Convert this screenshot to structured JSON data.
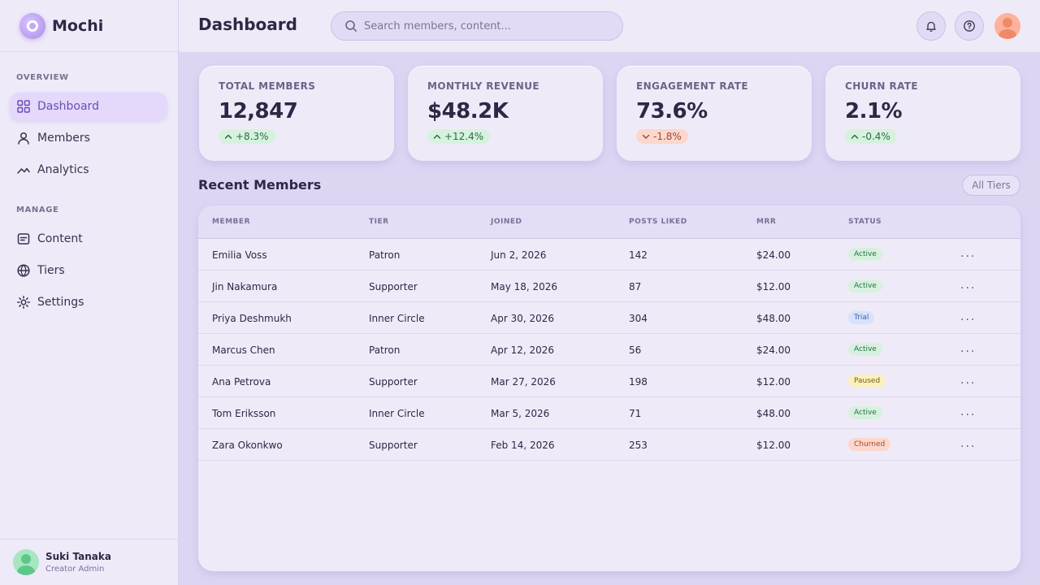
{
  "app": {
    "name": "Mochi"
  },
  "sidebar": {
    "sections": [
      {
        "label": "OVERVIEW"
      },
      {
        "label": "MANAGE"
      }
    ],
    "items": [
      {
        "label": "Dashboard",
        "icon": "grid-icon"
      },
      {
        "label": "Members",
        "icon": "user-icon"
      },
      {
        "label": "Analytics",
        "icon": "analytics-icon"
      },
      {
        "label": "Content",
        "icon": "content-icon"
      },
      {
        "label": "Tiers",
        "icon": "globe-icon"
      },
      {
        "label": "Settings",
        "icon": "gear-icon"
      }
    ],
    "user": {
      "name": "Suki Tanaka",
      "role": "Creator Admin"
    }
  },
  "header": {
    "title": "Dashboard",
    "search_placeholder": "Search members, content..."
  },
  "stats": [
    {
      "label": "TOTAL MEMBERS",
      "value": "12,847",
      "delta": "+8.3%",
      "direction": "up"
    },
    {
      "label": "MONTHLY REVENUE",
      "value": "$48.2K",
      "delta": "+12.4%",
      "direction": "up"
    },
    {
      "label": "ENGAGEMENT RATE",
      "value": "73.6%",
      "delta": "-1.8%",
      "direction": "down"
    },
    {
      "label": "CHURN RATE",
      "value": "2.1%",
      "delta": "-0.4%",
      "direction": "up"
    }
  ],
  "recent": {
    "title": "Recent Members",
    "filter_label": "All Tiers",
    "columns": [
      "MEMBER",
      "TIER",
      "JOINED",
      "POSTS LIKED",
      "MRR",
      "STATUS"
    ],
    "more_label": "...",
    "rows": [
      {
        "member": "Emilia Voss",
        "tier": "Patron",
        "joined": "Jun 2, 2026",
        "posts": "142",
        "mrr": "$24.00",
        "status": "Active"
      },
      {
        "member": "Jin Nakamura",
        "tier": "Supporter",
        "joined": "May 18, 2026",
        "posts": "87",
        "mrr": "$12.00",
        "status": "Active"
      },
      {
        "member": "Priya Deshmukh",
        "tier": "Inner Circle",
        "joined": "Apr 30, 2026",
        "posts": "304",
        "mrr": "$48.00",
        "status": "Trial"
      },
      {
        "member": "Marcus Chen",
        "tier": "Patron",
        "joined": "Apr 12, 2026",
        "posts": "56",
        "mrr": "$24.00",
        "status": "Active"
      },
      {
        "member": "Ana Petrova",
        "tier": "Supporter",
        "joined": "Mar 27, 2026",
        "posts": "198",
        "mrr": "$12.00",
        "status": "Paused"
      },
      {
        "member": "Tom Eriksson",
        "tier": "Inner Circle",
        "joined": "Mar 5, 2026",
        "posts": "71",
        "mrr": "$48.00",
        "status": "Active"
      },
      {
        "member": "Zara Okonkwo",
        "tier": "Supporter",
        "joined": "Feb 14, 2026",
        "posts": "253",
        "mrr": "$12.00",
        "status": "Churned"
      }
    ]
  },
  "colors": {
    "accent": "#6a4fb5",
    "positive": "#2a6d43",
    "negative": "#a04a32",
    "background": "#ddd6f3"
  }
}
